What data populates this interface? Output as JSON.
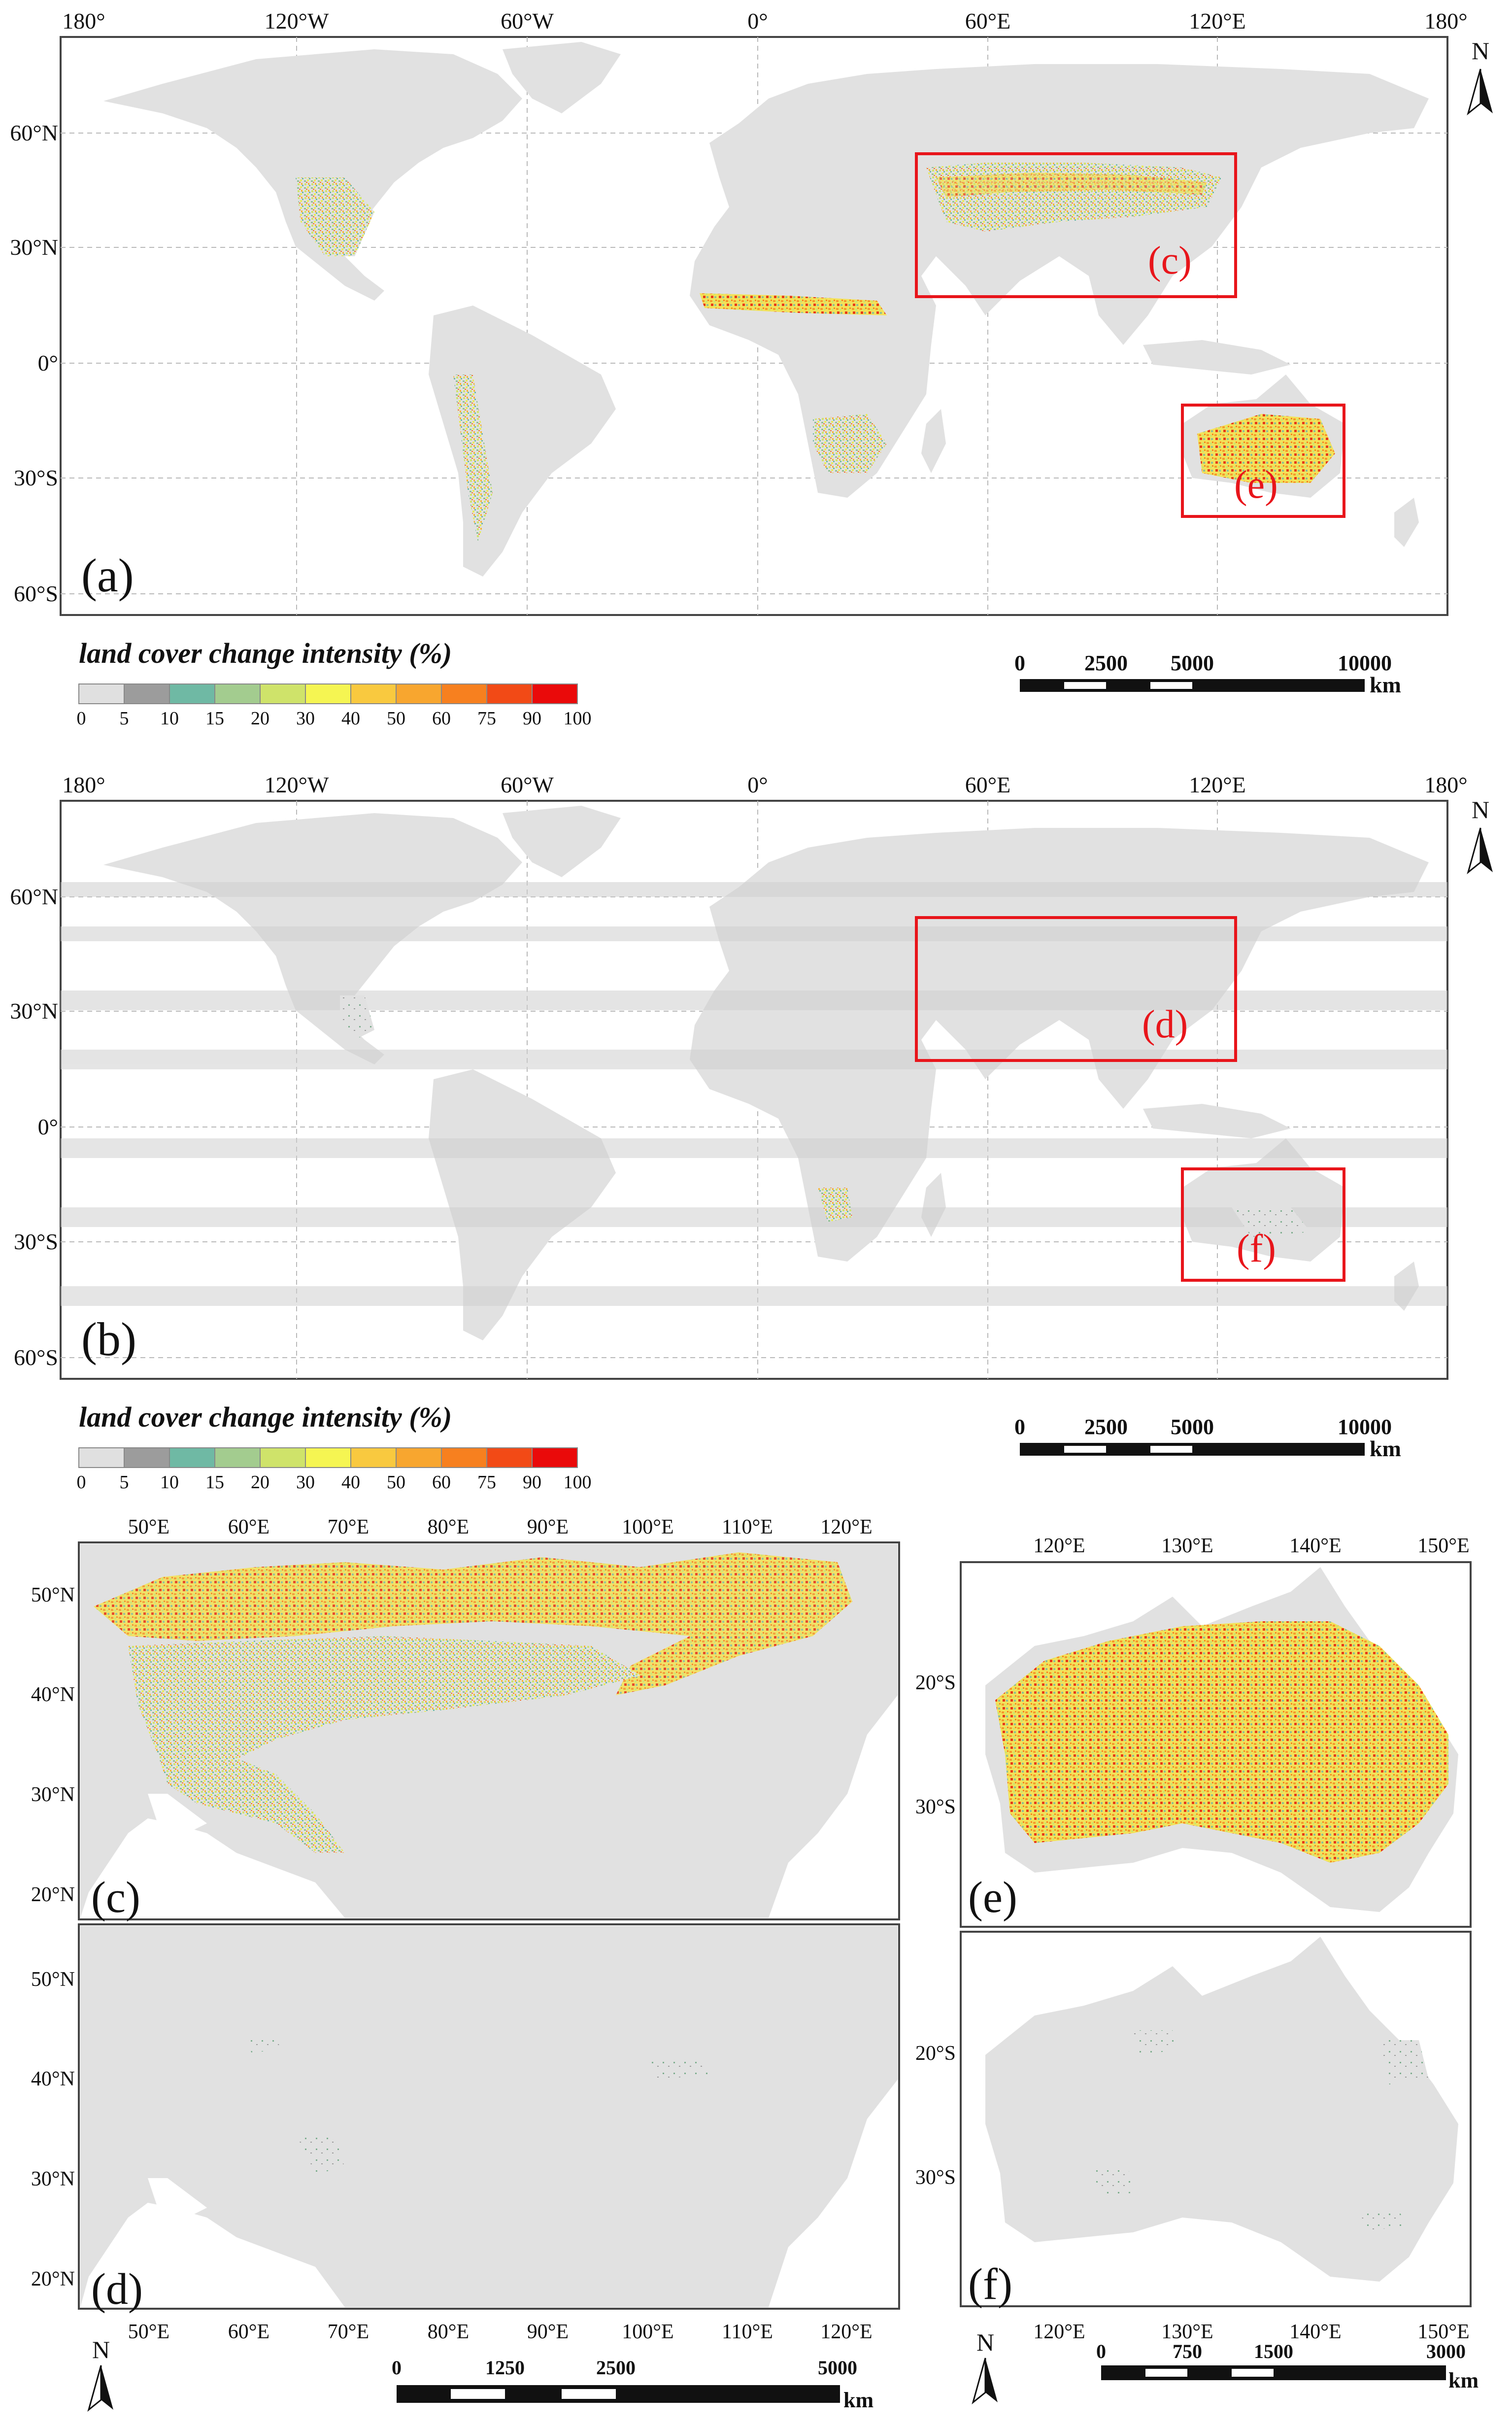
{
  "colors": {
    "land": "#e1e1e1",
    "band": "#d4d4d4",
    "frame": "#444444",
    "grid": "#b9b9b9",
    "box": "#e8151b",
    "ramp": [
      "#e0e0e0",
      "#9c9c9c",
      "#6fb9a4",
      "#a3cc8f",
      "#cfe36a",
      "#f5f552",
      "#f9c93f",
      "#f8a62f",
      "#f7801f",
      "#f24a16",
      "#ea0a0a"
    ]
  },
  "world_axis": {
    "lon_labels": [
      "180°",
      "120°W",
      "60°W",
      "0°",
      "60°E",
      "120°E",
      "180°"
    ],
    "lat_labels": [
      "60°N",
      "30°N",
      "0°",
      "30°S",
      "60°S"
    ]
  },
  "panels": {
    "a": {
      "label": "(a)"
    },
    "b": {
      "label": "(b)"
    },
    "c": {
      "label": "(c)",
      "lon_labels": [
        "50°E",
        "60°E",
        "70°E",
        "80°E",
        "90°E",
        "100°E",
        "110°E",
        "120°E"
      ],
      "lat_labels": [
        "50°N",
        "40°N",
        "30°N",
        "20°N"
      ]
    },
    "d": {
      "label": "(d)",
      "lon_labels": [
        "50°E",
        "60°E",
        "70°E",
        "80°E",
        "90°E",
        "100°E",
        "110°E",
        "120°E"
      ],
      "lat_labels": [
        "50°N",
        "40°N",
        "30°N",
        "20°N"
      ]
    },
    "e": {
      "label": "(e)",
      "lon_labels": [
        "120°E",
        "130°E",
        "140°E",
        "150°E"
      ],
      "lat_labels": [
        "20°S",
        "30°S"
      ]
    },
    "f": {
      "label": "(f)",
      "lon_labels": [
        "120°E",
        "130°E",
        "140°E",
        "150°E"
      ],
      "lat_labels": [
        "20°S",
        "30°S"
      ]
    }
  },
  "boxes": {
    "c": "(c)",
    "e": "(e)",
    "d": "(d)",
    "f": "(f)"
  },
  "legend": {
    "title": "land cover change intensity (%)",
    "breaks": [
      "0",
      "5",
      "10",
      "15",
      "20",
      "30",
      "40",
      "50",
      "60",
      "75",
      "90",
      "100"
    ]
  },
  "scalebars": {
    "world": {
      "ticks": [
        "0",
        "2500",
        "5000",
        "10000"
      ],
      "unit": "km"
    },
    "asia": {
      "ticks": [
        "0",
        "1250",
        "2500",
        "5000"
      ],
      "unit": "km"
    },
    "aus": {
      "ticks": [
        "0",
        "750",
        "1500",
        "3000"
      ],
      "unit": "km"
    }
  },
  "north": "N"
}
